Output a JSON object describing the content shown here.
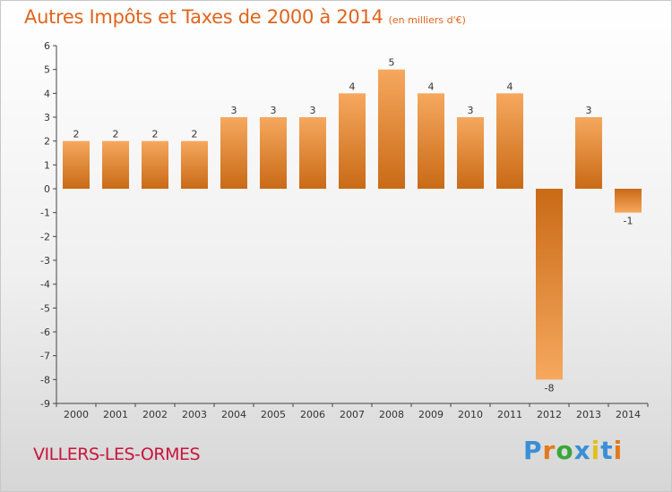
{
  "chart": {
    "title": "Autres Impôts et Taxes de 2000 à 2014",
    "subtitle": "(en milliers d'€)"
  },
  "commune": "VILLERS-LES-ORMES",
  "logo": {
    "text": "Proxiti",
    "letters": [
      {
        "ch": "P",
        "color": "#3a8fd6"
      },
      {
        "ch": "r",
        "color": "#e07a1e"
      },
      {
        "ch": "o",
        "color": "#3aa63a"
      },
      {
        "ch": "x",
        "color": "#3a8fd6"
      },
      {
        "ch": "i",
        "color": "#e0c01e"
      },
      {
        "ch": "t",
        "color": "#3a8fd6"
      },
      {
        "ch": "i",
        "color": "#e07a1e"
      }
    ]
  },
  "colors": {
    "bar_light": "#f4a35a",
    "bar_dark": "#c96a16",
    "title": "#e0641e",
    "commune": "#c8143c",
    "axis": "#444444"
  },
  "chart_data": {
    "type": "bar",
    "title": "Autres Impôts et Taxes de 2000 à 2014",
    "subtitle": "(en milliers d'€)",
    "categories": [
      "2000",
      "2001",
      "2002",
      "2003",
      "2004",
      "2005",
      "2006",
      "2007",
      "2008",
      "2009",
      "2010",
      "2011",
      "2012",
      "2013",
      "2014"
    ],
    "values": [
      2,
      2,
      2,
      2,
      3,
      3,
      3,
      4,
      5,
      4,
      3,
      4,
      -8,
      3,
      -1
    ],
    "ylim": [
      -9,
      6
    ],
    "yticks": [
      6,
      5,
      4,
      3,
      2,
      1,
      0,
      -1,
      -2,
      -3,
      -4,
      -5,
      -6,
      -7,
      -8,
      -9
    ],
    "grid": false,
    "legend": "none"
  }
}
